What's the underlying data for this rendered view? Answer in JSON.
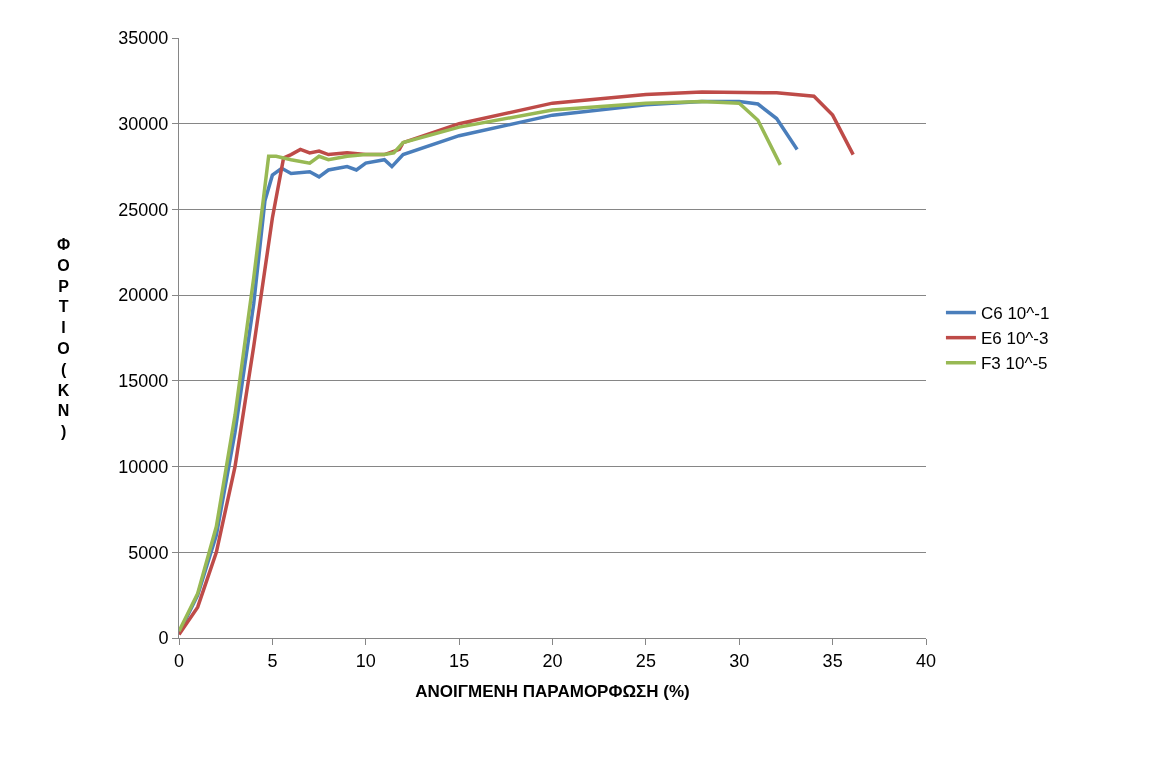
{
  "chart_data": {
    "type": "line",
    "xlabel": "ΑΝΟΙΓΜΕΝΗ ΠΑΡΑΜΟΡΦΩΣΗ (%)",
    "ylabel": "ΦΟΡΤΙΟ (KN)",
    "xlim": [
      0,
      40
    ],
    "xticks": [
      0,
      5,
      10,
      15,
      20,
      25,
      30,
      35,
      40
    ],
    "ylim": [
      0,
      35000
    ],
    "yticks": [
      0,
      5000,
      10000,
      15000,
      20000,
      25000,
      30000,
      35000
    ],
    "grid": "y",
    "legend": "right",
    "marker": "none",
    "line_style": "solid",
    "series": [
      {
        "name": "C6 10^-1",
        "color": "#4a7ebb",
        "x": [
          0,
          1,
          2,
          3,
          4,
          4.6,
          5,
          5.5,
          6,
          7,
          7.5,
          8,
          9,
          9.5,
          10,
          11,
          11.4,
          12,
          15,
          20,
          25,
          28,
          30,
          31,
          32,
          33.1
        ],
        "values": [
          300,
          2500,
          6000,
          12000,
          19500,
          25500,
          27000,
          27400,
          27100,
          27200,
          26900,
          27300,
          27500,
          27300,
          27700,
          27900,
          27500,
          28200,
          29300,
          30500,
          31100,
          31300,
          31300,
          31150,
          30300,
          28500
        ]
      },
      {
        "name": "E6 10^-3",
        "color": "#be4b48",
        "x": [
          0,
          1,
          2,
          3,
          4,
          5,
          5.6,
          6,
          6.5,
          7,
          7.5,
          8,
          9,
          10,
          11,
          11.8,
          12,
          15,
          20,
          25,
          28,
          32,
          34,
          35,
          36.1
        ],
        "values": [
          200,
          1800,
          5000,
          10000,
          17000,
          24500,
          28000,
          28200,
          28500,
          28300,
          28400,
          28200,
          28300,
          28200,
          28200,
          28500,
          28900,
          30000,
          31200,
          31700,
          31850,
          31800,
          31600,
          30500,
          28200
        ]
      },
      {
        "name": "F3 10^-5",
        "color": "#98b954",
        "x": [
          0,
          1,
          2,
          3,
          4,
          4.8,
          5.2,
          6,
          7,
          7.5,
          8,
          9,
          10,
          11,
          11.5,
          12,
          15,
          20,
          25,
          28,
          30,
          31,
          32.2
        ],
        "values": [
          400,
          2600,
          6500,
          13000,
          21000,
          28100,
          28100,
          27900,
          27700,
          28100,
          27900,
          28100,
          28200,
          28200,
          28300,
          28900,
          29800,
          30800,
          31200,
          31300,
          31200,
          30200,
          27600
        ]
      }
    ]
  }
}
